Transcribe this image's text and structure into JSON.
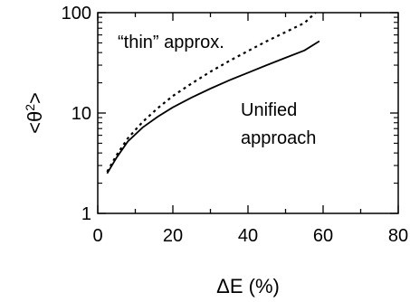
{
  "chart_data": {
    "type": "line",
    "xlabel": "ΔE (%)",
    "ylabel_base": "<θ",
    "ylabel_sup": "2",
    "ylabel_end": ">",
    "xlim": [
      0,
      80
    ],
    "ylim": [
      1,
      100
    ],
    "yscale": "log",
    "x_ticks": [
      0,
      20,
      40,
      60,
      80
    ],
    "x_tick_labels": [
      "0",
      "20",
      "40",
      "60",
      "80"
    ],
    "y_ticks": [
      1,
      10,
      100
    ],
    "y_tick_labels": [
      "1",
      "10",
      "100"
    ],
    "grid": false,
    "series": [
      {
        "name": "“thin” approx.",
        "style": "dotted",
        "x": [
          2.5,
          5,
          8,
          12,
          16,
          20,
          25,
          30,
          35,
          40,
          45,
          50,
          55,
          58
        ],
        "y": [
          2.6,
          3.8,
          5.6,
          8.2,
          11.2,
          14.8,
          19.7,
          25.8,
          33,
          41.5,
          52,
          64,
          79,
          100
        ]
      },
      {
        "name": "Unified approach",
        "style": "solid",
        "x": [
          2.5,
          5,
          8,
          12,
          16,
          20,
          25,
          30,
          35,
          40,
          45,
          50,
          55,
          59
        ],
        "y": [
          2.5,
          3.6,
          5.2,
          7.2,
          9.2,
          11.4,
          14.3,
          17.5,
          21.2,
          25.2,
          30,
          35.5,
          42,
          52
        ]
      }
    ],
    "annotations": [
      {
        "text": "“thin” approx."
      },
      {
        "text_line1": "Unified",
        "text_line2": "approach"
      }
    ]
  }
}
